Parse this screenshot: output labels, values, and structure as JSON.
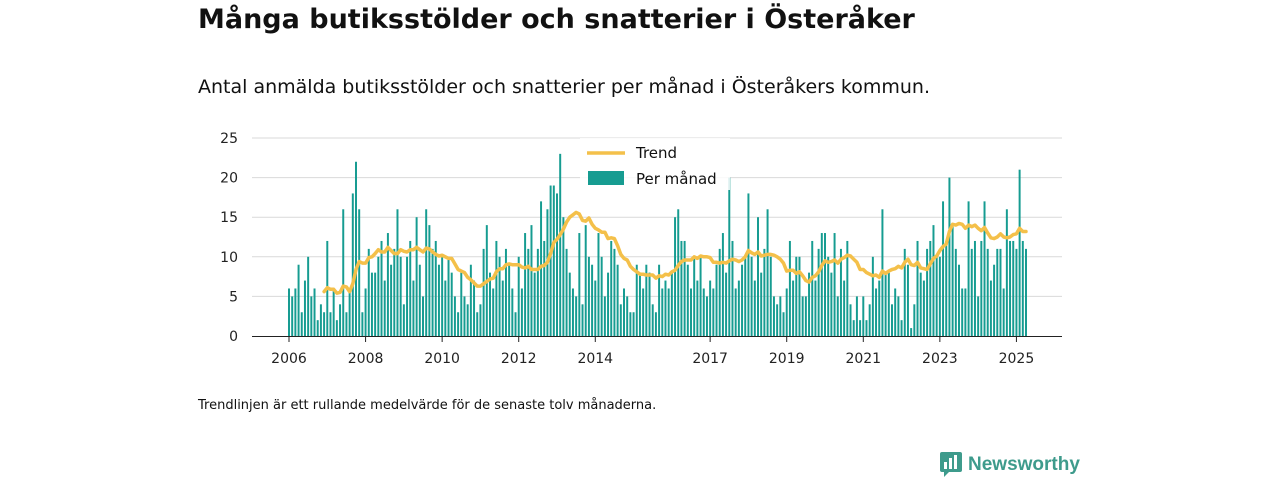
{
  "title": "Många butiksstölder och snatterier i Österåker",
  "subtitle": "Antal anmälda butiksstölder och snatterier per månad i Österåkers kommun.",
  "footnote": "Trendlinjen är ett rullande medelvärde för de senaste tolv månaderna.",
  "brand": {
    "name": "Newsworthy",
    "logo_icon": "bar-chart-speech-icon",
    "color": "#3e9b8c"
  },
  "chart_data": {
    "type": "bar",
    "xlabel": "",
    "ylabel": "",
    "ylim": [
      0,
      25
    ],
    "yticks": [
      0,
      5,
      10,
      15,
      20,
      25
    ],
    "grid": "horizontal",
    "legend_position": "top-center",
    "x_tick_labels": [
      "2006",
      "2008",
      "2010",
      "2012",
      "2014",
      "2017",
      "2019",
      "2021",
      "2023",
      "2025"
    ],
    "x_start": "2006-01",
    "x_end": "2025-04",
    "colors": {
      "bars": "#169c91",
      "trend": "#f4c04a"
    },
    "series": [
      {
        "name": "Per månad",
        "kind": "bar",
        "values": [
          6,
          5,
          6,
          9,
          3,
          7,
          10,
          5,
          6,
          2,
          4,
          3,
          12,
          3,
          6,
          2,
          4,
          16,
          3,
          6,
          18,
          22,
          16,
          3,
          6,
          11,
          8,
          8,
          10,
          12,
          7,
          13,
          9,
          11,
          16,
          10,
          4,
          10,
          12,
          7,
          15,
          9,
          5,
          16,
          14,
          11,
          12,
          9,
          10,
          7,
          10,
          8,
          5,
          3,
          8,
          5,
          4,
          9,
          7,
          3,
          4,
          11,
          14,
          8,
          6,
          12,
          10,
          7,
          11,
          9,
          6,
          3,
          10,
          6,
          13,
          11,
          14,
          8,
          11,
          17,
          12,
          16,
          19,
          19,
          18,
          23,
          15,
          11,
          8,
          6,
          5,
          13,
          4,
          14,
          10,
          9,
          7,
          13,
          10,
          5,
          8,
          12,
          11,
          9,
          4,
          6,
          5,
          3,
          3,
          9,
          8,
          6,
          9,
          8,
          4,
          3,
          9,
          6,
          7,
          6,
          8,
          15,
          16,
          12,
          12,
          9,
          6,
          10,
          7,
          10,
          6,
          5,
          7,
          6,
          9,
          11,
          13,
          8,
          20,
          12,
          6,
          7,
          9,
          10,
          18,
          10,
          7,
          15,
          8,
          11,
          16,
          10,
          5,
          4,
          5,
          3,
          6,
          12,
          7,
          10,
          10,
          5,
          5,
          8,
          12,
          7,
          11,
          13,
          13,
          10,
          8,
          13,
          5,
          11,
          7,
          12,
          4,
          2,
          5,
          2,
          5,
          2,
          4,
          10,
          6,
          7,
          16,
          8,
          8,
          4,
          6,
          5,
          2,
          11,
          9,
          1,
          4,
          12,
          8,
          7,
          11,
          12,
          14,
          10,
          10,
          17,
          12,
          20,
          14,
          11,
          9,
          6,
          6,
          17,
          11,
          12,
          5,
          12,
          17,
          11,
          7,
          9,
          11,
          11,
          6,
          16,
          12,
          12,
          11,
          21,
          12,
          11
        ]
      },
      {
        "name": "Trend",
        "kind": "line",
        "values": [
          null,
          null,
          null,
          null,
          null,
          null,
          null,
          null,
          null,
          null,
          null,
          5.6,
          6.1,
          5.9,
          5.9,
          5.4,
          5.5,
          6.3,
          6.2,
          5.6,
          6.6,
          8.4,
          9.4,
          9.2,
          9.2,
          9.9,
          10.0,
          10.4,
          10.9,
          10.6,
          10.6,
          11.2,
          10.8,
          10.4,
          10.4,
          10.9,
          10.7,
          10.6,
          10.9,
          10.9,
          11.2,
          10.9,
          10.6,
          11.1,
          11.0,
          10.6,
          10.3,
          10.1,
          10.2,
          10.0,
          9.8,
          9.8,
          9.1,
          8.4,
          8.2,
          8.0,
          7.4,
          7.1,
          6.7,
          6.3,
          6.3,
          6.6,
          6.9,
          7.2,
          7.3,
          8.1,
          8.5,
          8.5,
          9.0,
          9.1,
          9.0,
          9.0,
          9.0,
          8.7,
          8.6,
          8.8,
          8.4,
          8.4,
          8.4,
          8.8,
          8.9,
          9.3,
          10.4,
          11.8,
          12.2,
          12.8,
          13.5,
          14.4,
          15.0,
          15.3,
          15.6,
          15.4,
          14.6,
          14.5,
          14.9,
          14.1,
          13.6,
          13.4,
          13.1,
          13.1,
          12.3,
          12.4,
          12.3,
          11.4,
          10.3,
          9.8,
          9.6,
          8.8,
          8.4,
          8.1,
          7.8,
          7.8,
          7.7,
          7.7,
          7.7,
          7.3,
          7.6,
          7.5,
          7.8,
          7.7,
          8.1,
          8.3,
          8.9,
          9.4,
          9.6,
          9.6,
          9.6,
          10.0,
          9.8,
          10.1,
          10.0,
          10.0,
          9.9,
          9.3,
          9.3,
          9.2,
          9.3,
          9.2,
          9.5,
          9.7,
          9.6,
          9.4,
          9.6,
          10.0,
          10.8,
          10.5,
          10.3,
          10.6,
          10.1,
          10.2,
          10.3,
          10.3,
          10.2,
          10.0,
          9.7,
          9.2,
          8.2,
          8.3,
          8.3,
          7.9,
          8.1,
          7.6,
          7.0,
          6.8,
          7.4,
          7.6,
          8.1,
          8.9,
          9.5,
          9.3,
          9.4,
          9.6,
          9.2,
          9.7,
          9.9,
          10.2,
          10.1,
          9.7,
          9.3,
          8.4,
          8.4,
          8.0,
          7.8,
          7.6,
          7.7,
          7.4,
          8.2,
          7.9,
          8.2,
          8.4,
          8.5,
          8.8,
          8.6,
          9.3,
          9.7,
          9.0,
          8.9,
          9.3,
          8.6,
          8.5,
          8.4,
          9.1,
          9.8,
          10.1,
          10.8,
          11.3,
          11.6,
          13.2,
          14.1,
          14.0,
          14.2,
          14.1,
          13.6,
          14.0,
          13.8,
          14.0,
          13.6,
          13.3,
          13.7,
          13.0,
          12.4,
          12.3,
          12.5,
          12.9,
          12.5,
          12.4,
          12.5,
          12.8,
          12.9,
          13.6,
          13.2,
          13.2
        ]
      }
    ]
  }
}
